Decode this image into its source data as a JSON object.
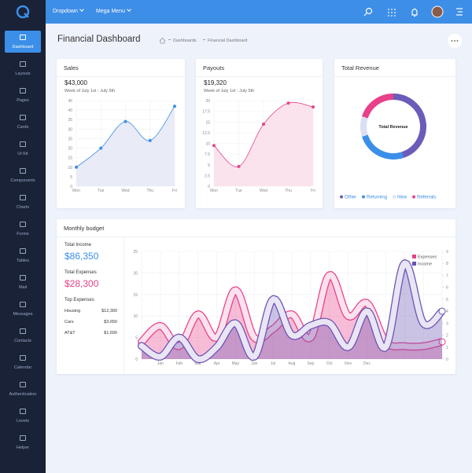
{
  "sidebar": {
    "items": [
      "Dashboard",
      "Layouts",
      "Pages",
      "Cards",
      "UI Kit",
      "Components",
      "Charts",
      "Forms",
      "Tables",
      "Mail",
      "Messages",
      "Contacts",
      "Calendar",
      "Authentication",
      "Levels",
      "Helper"
    ],
    "active": 0
  },
  "topbar": {
    "menus": [
      "Dropdown",
      "Mega Menu"
    ]
  },
  "page": {
    "title": "Financial Dashboard",
    "breadcrumb": [
      "Dashboards",
      "Financial Dashboard"
    ]
  },
  "cards": [
    {
      "title": "Sales",
      "amount": "$43,000",
      "period": "Week of July 1st - July 5th",
      "chart_data": {
        "type": "line",
        "categories": [
          "Mon",
          "Tue",
          "Wed",
          "Thu",
          "Fri"
        ],
        "values": [
          10,
          20,
          34,
          24,
          42
        ],
        "color": "#3b8fe8",
        "fill": "#e9ebf7",
        "ylim": [
          0,
          45
        ],
        "yticks": [
          0,
          5,
          10,
          15,
          20,
          25,
          30,
          35,
          40,
          45
        ],
        "grid": true
      }
    },
    {
      "title": "Payouts",
      "amount": "$19,320",
      "period": "Week of July 1st - July 5th",
      "chart_data": {
        "type": "line",
        "categories": [
          "Mon",
          "Tue",
          "Wed",
          "Thu",
          "Fri"
        ],
        "values": [
          9.5,
          4.6,
          14.5,
          19.4,
          18.5
        ],
        "color": "#e64586",
        "fill": "#fbe3ee",
        "ylim": [
          0,
          20
        ],
        "yticks": [
          0,
          2.5,
          5,
          7.5,
          10,
          12.5,
          15,
          17.5,
          20
        ],
        "grid": true
      }
    },
    {
      "title": "Total Revenue",
      "chart_data": {
        "type": "pie",
        "center_label": "Total Revenue",
        "categories": [
          "Other",
          "Returning",
          "New",
          "Referrals"
        ],
        "values": [
          45,
          25,
          10,
          20
        ],
        "colors": [
          "#6a5cb8",
          "#3b8fe8",
          "#d9dff4",
          "#e8408a"
        ]
      }
    }
  ],
  "budget": {
    "title": "Monthly budget",
    "income_label": "Total Income",
    "income": "$86,350",
    "expenses_label": "Total Expenses",
    "expenses": "$28,300",
    "top_label": "Top Expenses",
    "top": [
      [
        "Housing",
        "$12,300"
      ],
      [
        "Cars",
        "$3,650"
      ],
      [
        "AT&T",
        "$1,600"
      ]
    ],
    "chart_data": {
      "type": "line",
      "categories": [
        null,
        "Jan",
        "Feb",
        "Mar",
        "Apr",
        "May",
        "Jun",
        "Jul",
        "Aug",
        "Sep",
        "Oct",
        "Nov",
        "Dec",
        null,
        null,
        null,
        null
      ],
      "series": [
        {
          "name": "Expenses",
          "color": "#e8408a",
          "values": [
            4,
            7.7,
            3,
            10.4,
            5,
            16,
            5,
            7,
            10.4,
            5,
            19.5,
            10,
            13,
            4,
            3,
            3,
            4
          ]
        },
        {
          "name": "Income",
          "color": "#6a52b3",
          "axis": "y2",
          "values": [
            1.1,
            0.2,
            1.8,
            0,
            1,
            3,
            0.2,
            5,
            2,
            2.8,
            3,
            1,
            4,
            1,
            8,
            3,
            4
          ]
        }
      ],
      "ylim": [
        0,
        25
      ],
      "yticks": [
        0,
        5,
        10,
        15,
        20,
        25
      ],
      "y2lim": [
        0,
        9
      ],
      "y2ticks": [
        0,
        1,
        2,
        3,
        4,
        5,
        6,
        7,
        8,
        9
      ],
      "grid": true,
      "legend": "top-right"
    }
  }
}
